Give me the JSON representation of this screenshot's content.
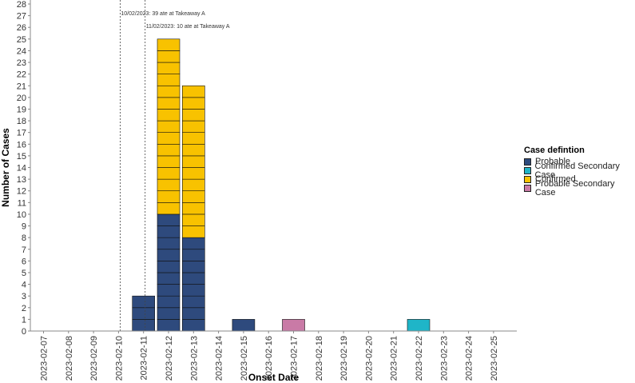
{
  "chart_data": {
    "type": "bar",
    "stacked": true,
    "xlabel": "Onset Date",
    "ylabel": "Number of Cases",
    "ylim": [
      0,
      28
    ],
    "y_ticks": [
      0,
      1,
      2,
      3,
      4,
      5,
      6,
      7,
      8,
      9,
      10,
      11,
      12,
      13,
      14,
      15,
      16,
      17,
      18,
      19,
      20,
      21,
      22,
      23,
      24,
      25,
      26,
      27,
      28
    ],
    "categories": [
      "2023-02-07",
      "2023-02-08",
      "2023-02-09",
      "2023-02-10",
      "2023-02-11",
      "2023-02-12",
      "2023-02-13",
      "2023-02-14",
      "2023-02-15",
      "2023-02-16",
      "2023-02-17",
      "2023-02-18",
      "2023-02-19",
      "2023-02-20",
      "2023-02-21",
      "2023-02-22",
      "2023-02-23",
      "2023-02-24",
      "2023-02-25"
    ],
    "series": [
      {
        "name": "Probable",
        "color": "#2e4a7d",
        "values": [
          0,
          0,
          0,
          0,
          3,
          10,
          8,
          0,
          1,
          0,
          0,
          0,
          0,
          0,
          0,
          0,
          0,
          0,
          0
        ]
      },
      {
        "name": "Confirmed Secondary Case",
        "color": "#1fb5c8",
        "values": [
          0,
          0,
          0,
          0,
          0,
          0,
          0,
          0,
          0,
          0,
          0,
          0,
          0,
          0,
          0,
          1,
          0,
          0,
          0
        ]
      },
      {
        "name": "Confirmed",
        "color": "#f8c200",
        "values": [
          0,
          0,
          0,
          0,
          0,
          15,
          13,
          0,
          0,
          0,
          0,
          0,
          0,
          0,
          0,
          0,
          0,
          0,
          0
        ]
      },
      {
        "name": "Probable Secondary Case",
        "color": "#c97aa6",
        "values": [
          0,
          0,
          0,
          0,
          0,
          0,
          0,
          0,
          0,
          0,
          1,
          0,
          0,
          0,
          0,
          0,
          0,
          0,
          0
        ]
      }
    ],
    "legend": {
      "title": "Case defintion",
      "placement": "right"
    },
    "annotations": [
      {
        "at": "2023-02-10",
        "text": "10/02/2023: 39 ate at Takeaway A"
      },
      {
        "at": "2023-02-11",
        "text": "11/02/2023: 10 ate at Takeaway A"
      }
    ],
    "grid": false
  }
}
